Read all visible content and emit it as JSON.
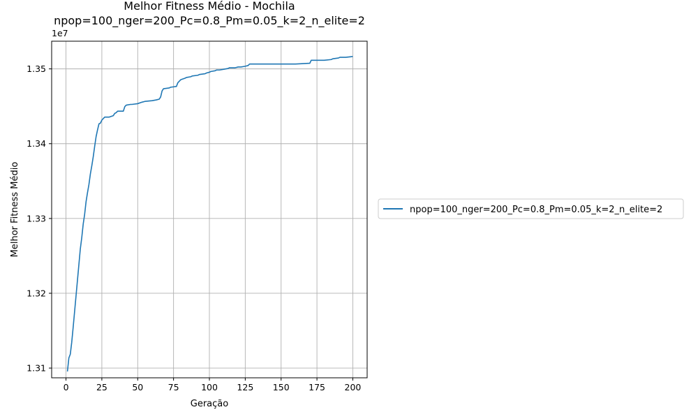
{
  "chart_data": {
    "type": "line",
    "title": "Melhor Fitness Médio - Mochila",
    "subtitle": "npop=100_nger=200_Pc=0.8_Pm=0.05_k=2_n_elite=2",
    "xlabel": "Geração",
    "ylabel": "Melhor Fitness Médio",
    "offset_label": "1e7",
    "xlim": [
      -10,
      210
    ],
    "ylim": [
      13.087,
      13.537
    ],
    "y_scale_note": "values in units of 1e7",
    "xticks": [
      0,
      25,
      50,
      75,
      100,
      125,
      150,
      175,
      200
    ],
    "xtick_labels": [
      "0",
      "25",
      "50",
      "75",
      "100",
      "125",
      "150",
      "175",
      "200"
    ],
    "yticks": [
      13.1,
      13.2,
      13.3,
      13.4,
      13.5
    ],
    "ytick_labels": [
      "1.31",
      "1.32",
      "1.33",
      "1.34",
      "1.35"
    ],
    "grid": true,
    "legend_position": "outside-right",
    "series": [
      {
        "name": "npop=100_nger=200_Pc=0.8_Pm=0.05_k=2_n_elite=2",
        "color": "#1f77b4",
        "x": [
          1,
          2,
          3,
          4,
          5,
          6,
          7,
          8,
          9,
          10,
          11,
          12,
          13,
          14,
          15,
          16,
          17,
          18,
          19,
          20,
          21,
          22,
          23,
          24,
          25,
          26,
          27,
          28,
          30,
          33,
          34,
          35,
          36,
          40,
          41,
          42,
          45,
          46,
          50,
          53,
          55,
          60,
          63,
          65,
          66,
          67,
          68,
          72,
          73,
          77,
          78,
          79,
          80,
          83,
          84,
          87,
          88,
          92,
          93,
          97,
          98,
          100,
          101,
          104,
          105,
          107,
          110,
          113,
          114,
          118,
          120,
          122,
          125,
          127,
          128,
          135,
          150,
          160,
          170,
          171,
          180,
          185,
          186,
          190,
          191,
          195,
          200
        ],
        "y": [
          13.0955,
          13.1135,
          13.1185,
          13.1345,
          13.1545,
          13.1755,
          13.1965,
          13.2175,
          13.2385,
          13.2595,
          13.2745,
          13.2925,
          13.3055,
          13.3225,
          13.3345,
          13.3455,
          13.3595,
          13.3705,
          13.3825,
          13.3965,
          13.4095,
          13.4185,
          13.4265,
          13.4275,
          13.4315,
          13.4335,
          13.4355,
          13.4355,
          13.4355,
          13.4375,
          13.4405,
          13.4415,
          13.4435,
          13.4435,
          13.4495,
          13.4515,
          13.4525,
          13.4525,
          13.4535,
          13.4555,
          13.4565,
          13.4575,
          13.4585,
          13.4595,
          13.4625,
          13.4705,
          13.4735,
          13.4745,
          13.4755,
          13.4765,
          13.4815,
          13.4835,
          13.4855,
          13.4875,
          13.4885,
          13.4895,
          13.4905,
          13.4915,
          13.4925,
          13.4935,
          13.4945,
          13.4955,
          13.4965,
          13.4975,
          13.4985,
          13.4985,
          13.4995,
          13.5005,
          13.5015,
          13.5015,
          13.5025,
          13.5025,
          13.5035,
          13.5045,
          13.5065,
          13.5065,
          13.5065,
          13.5065,
          13.5075,
          13.5115,
          13.5115,
          13.5125,
          13.5135,
          13.5145,
          13.5155,
          13.5155,
          13.5165
        ]
      }
    ]
  }
}
